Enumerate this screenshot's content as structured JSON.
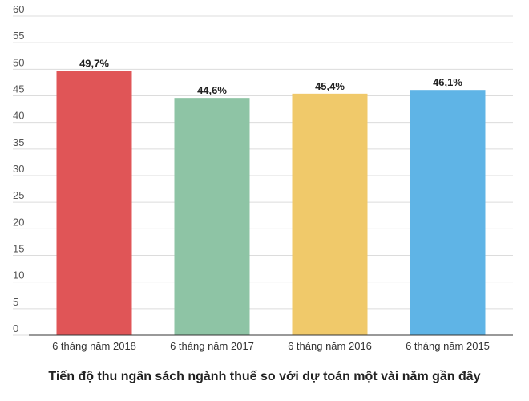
{
  "chart_data": {
    "type": "bar",
    "title": "Tiến độ thu ngân sách ngành thuế so với dự toán một vài năm gần đây",
    "categories": [
      "6 tháng năm 2018",
      "6 tháng năm 2017",
      "6 tháng năm 2016",
      "6 tháng năm 2015"
    ],
    "values": [
      49.7,
      44.6,
      45.4,
      46.1
    ],
    "data_labels": [
      "49,7%",
      "44,6%",
      "45,4%",
      "46,1%"
    ],
    "colors": [
      "#e05557",
      "#8ec4a5",
      "#f0c96a",
      "#5fb4e6"
    ],
    "ylim": [
      0,
      60
    ],
    "yticks": [
      0,
      5,
      10,
      15,
      20,
      25,
      30,
      35,
      40,
      45,
      50,
      55,
      60
    ],
    "grid": true,
    "legend": "none"
  }
}
